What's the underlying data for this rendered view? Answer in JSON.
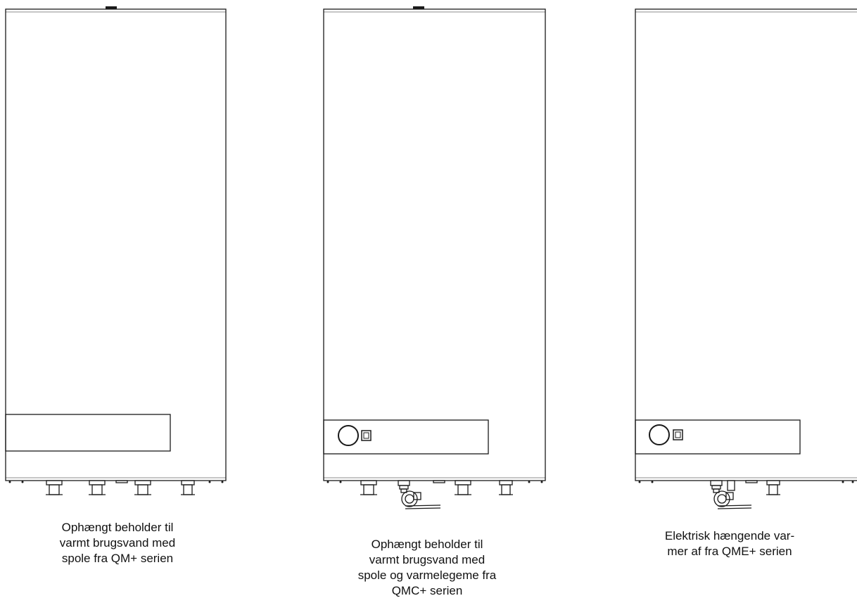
{
  "products": [
    {
      "id": "qm",
      "caption_lines": [
        "Ophængt beholder til",
        "varmt brugsvand med",
        "spole fra QM+ serien"
      ],
      "has_control_panel_controls": false,
      "has_heating_element": false
    },
    {
      "id": "qmc",
      "caption_lines": [
        "Ophængt beholder til",
        "varmt brugsvand med",
        "spole og varmelegeme fra",
        "QMC+ serien"
      ],
      "has_control_panel_controls": true,
      "has_heating_element": true
    },
    {
      "id": "qme",
      "caption_lines": [
        "Elektrisk hængende var-",
        "mer af fra QME+ serien"
      ],
      "has_control_panel_controls": true,
      "has_heating_element": true
    }
  ],
  "colors": {
    "line": "#1a1a1a",
    "background": "#ffffff"
  }
}
